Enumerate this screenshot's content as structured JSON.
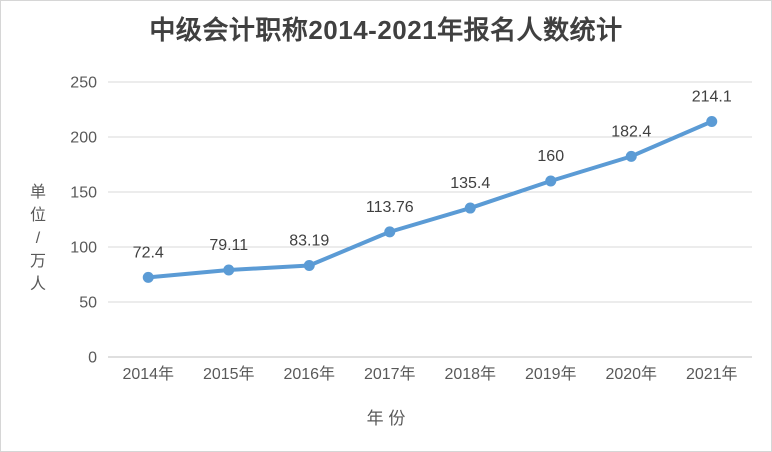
{
  "frame": {
    "background": "#ffffff",
    "border_color": "#d6d6d6"
  },
  "chart_data": {
    "type": "line",
    "title": "中级会计职称2014-2021年报名人数统计",
    "categories": [
      "2014年",
      "2015年",
      "2016年",
      "2017年",
      "2018年",
      "2019年",
      "2020年",
      "2021年"
    ],
    "values": [
      72.4,
      79.11,
      83.19,
      113.76,
      135.4,
      160,
      182.4,
      214.1
    ],
    "data_labels": [
      "72.4",
      "79.11",
      "83.19",
      "113.76",
      "135.4",
      "160",
      "182.4",
      "214.1"
    ],
    "xlabel": "年 份",
    "ylabel": "单位/万人",
    "ylim": [
      0,
      250
    ],
    "yticks": [
      0,
      50,
      100,
      150,
      200,
      250
    ],
    "grid": true,
    "legend": "none",
    "line_color": "#5B9BD5",
    "marker_color": "#5B9BD5",
    "gridline_color": "#D9D9D9",
    "axis_line_color": "#BFBFBF",
    "tick_label_color": "#595959",
    "data_label_color": "#404040",
    "title_color": "#404040"
  }
}
